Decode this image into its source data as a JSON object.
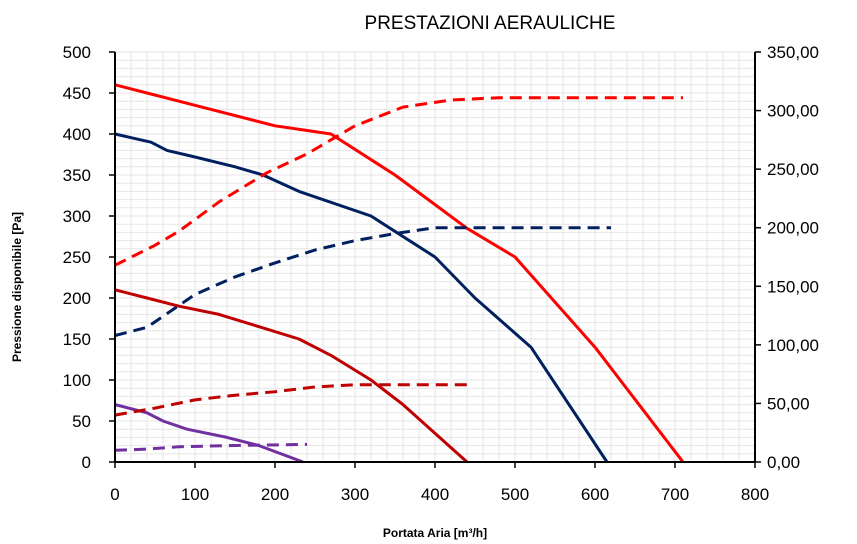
{
  "chart_data": {
    "type": "line",
    "title": "PRESTAZIONI AERAULICHE",
    "xlabel": "Portata Aria  [m³/h]",
    "ylabel": "Pressione disponibile  [Pa]",
    "y2label": "",
    "xlim": [
      0,
      800
    ],
    "ylim": [
      0,
      500
    ],
    "y2lim": [
      0,
      350
    ],
    "grid": true,
    "legend": "none",
    "x_ticks": [
      "0",
      "100",
      "200",
      "300",
      "400",
      "500",
      "600",
      "700",
      "800"
    ],
    "y_ticks": [
      "0",
      "50",
      "100",
      "150",
      "200",
      "250",
      "300",
      "350",
      "400",
      "450",
      "500"
    ],
    "y2_ticks": [
      "0,00",
      "50,00",
      "100,00",
      "150,00",
      "200,00",
      "250,00",
      "300,00",
      "350,00"
    ],
    "series": [
      {
        "color": "#ff0000",
        "style": "solid",
        "axis": "left",
        "x": [
          0,
          40,
          100,
          200,
          270,
          350,
          440,
          500,
          600,
          710
        ],
        "y": [
          460,
          450,
          435,
          410,
          400,
          350,
          285,
          250,
          140,
          0
        ]
      },
      {
        "color": "#002060",
        "style": "solid",
        "axis": "left",
        "x": [
          0,
          45,
          65,
          100,
          150,
          185,
          230,
          320,
          400,
          450,
          520,
          615
        ],
        "y": [
          400,
          390,
          380,
          372,
          360,
          350,
          330,
          300,
          250,
          200,
          140,
          0
        ]
      },
      {
        "color": "#c00000",
        "style": "solid",
        "axis": "left",
        "x": [
          0,
          40,
          80,
          130,
          180,
          230,
          270,
          320,
          360,
          440
        ],
        "y": [
          210,
          200,
          190,
          180,
          165,
          150,
          130,
          100,
          70,
          0
        ]
      },
      {
        "color": "#7030a0",
        "style": "solid",
        "axis": "left",
        "x": [
          0,
          40,
          60,
          90,
          140,
          180,
          235
        ],
        "y": [
          70,
          60,
          50,
          40,
          30,
          20,
          0
        ]
      },
      {
        "color": "#ff0000",
        "style": "dashed",
        "axis": "right",
        "x": [
          0,
          50,
          80,
          130,
          190,
          240,
          300,
          360,
          420,
          480,
          550,
          710
        ],
        "y": [
          168,
          185,
          197,
          222,
          247,
          263,
          287,
          303,
          309,
          311,
          311,
          311
        ]
      },
      {
        "color": "#002060",
        "style": "dashed",
        "axis": "right",
        "x": [
          0,
          40,
          100,
          150,
          200,
          250,
          300,
          350,
          400,
          620
        ],
        "y": [
          108,
          115,
          143,
          158,
          170,
          181,
          189,
          195,
          200,
          200
        ]
      },
      {
        "color": "#c00000",
        "style": "dashed",
        "axis": "right",
        "x": [
          0,
          50,
          100,
          150,
          200,
          250,
          300,
          350,
          440
        ],
        "y": [
          40,
          46,
          53,
          57,
          60,
          64,
          66,
          66,
          66
        ]
      },
      {
        "color": "#7030a0",
        "style": "dashed",
        "axis": "right",
        "x": [
          0,
          40,
          80,
          140,
          240
        ],
        "y": [
          10,
          11,
          13,
          14,
          15
        ]
      }
    ]
  }
}
